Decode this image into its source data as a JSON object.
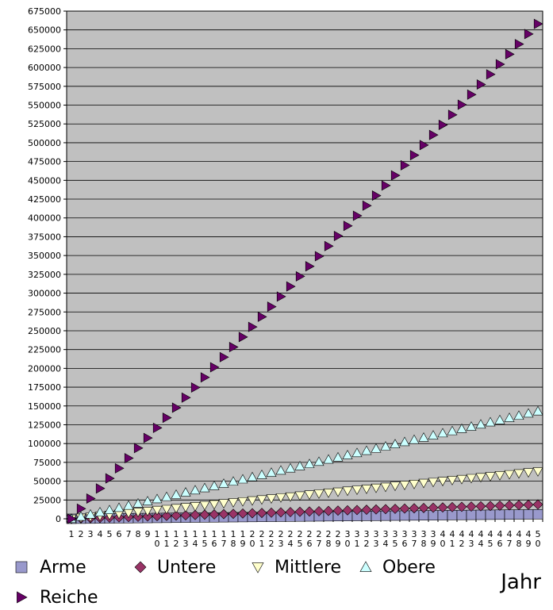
{
  "chart_data": {
    "type": "scatter",
    "xlabel": "Jahr",
    "x": [
      1,
      2,
      3,
      4,
      5,
      6,
      7,
      8,
      9,
      10,
      11,
      12,
      13,
      14,
      15,
      16,
      17,
      18,
      19,
      20,
      21,
      22,
      23,
      24,
      25,
      26,
      27,
      28,
      29,
      30,
      31,
      32,
      33,
      34,
      35,
      36,
      37,
      38,
      39,
      40,
      41,
      42,
      43,
      44,
      45,
      46,
      47,
      48,
      49,
      50
    ],
    "x_tick_labels": [
      "1",
      "2",
      "3",
      "4",
      "5",
      "6",
      "7",
      "8",
      "9",
      "10",
      "11",
      "12",
      "13",
      "14",
      "15",
      "16",
      "17",
      "18",
      "19",
      "20",
      "21",
      "22",
      "23",
      "24",
      "25",
      "26",
      "27",
      "28",
      "29",
      "30",
      "31",
      "32",
      "33",
      "34",
      "35",
      "36",
      "37",
      "38",
      "39",
      "40",
      "41",
      "42",
      "43",
      "44",
      "45",
      "46",
      "47",
      "48",
      "49",
      "50"
    ],
    "ylim": [
      0,
      675000
    ],
    "y_tick_step": 25000,
    "y_tick_labels": [
      "0",
      "25000",
      "50000",
      "75000",
      "100000",
      "125000",
      "150000",
      "175000",
      "200000",
      "225000",
      "250000",
      "275000",
      "300000",
      "325000",
      "350000",
      "375000",
      "400000",
      "425000",
      "450000",
      "475000",
      "500000",
      "525000",
      "550000",
      "575000",
      "600000",
      "625000",
      "650000",
      "675000"
    ],
    "grid": true,
    "legend_position": "bottom",
    "series": [
      {
        "name": "Arme",
        "marker": "square",
        "color": "#9999cc",
        "y_start": 0,
        "y_end": 6000
      },
      {
        "name": "Untere",
        "marker": "diamond",
        "color": "#993366",
        "y_start": 0,
        "y_end": 19000
      },
      {
        "name": "Mittlere",
        "marker": "triangle-down",
        "color": "#ffffcc",
        "y_start": 0,
        "y_end": 63000
      },
      {
        "name": "Obere",
        "marker": "triangle-up",
        "color": "#ccffff",
        "y_start": 0,
        "y_end": 143000
      },
      {
        "name": "Reiche",
        "marker": "triangle-right",
        "color": "#660066",
        "y_start": 0,
        "y_end": 658000
      }
    ]
  }
}
